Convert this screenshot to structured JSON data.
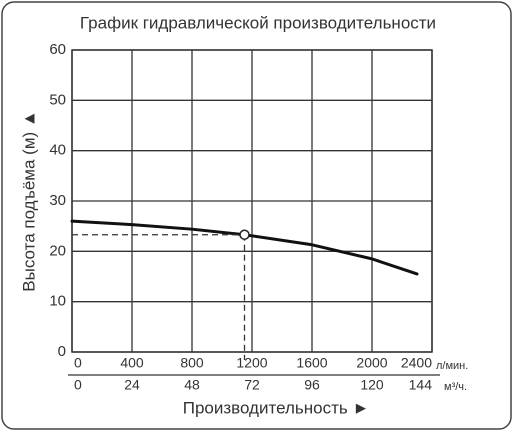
{
  "chart_data": {
    "type": "line",
    "title": "График гидравлической производительности",
    "ylabel": "Высота подъёма (м) ▲",
    "xlabel": "Производительность ►",
    "x_unit": "л/мин.",
    "x2_unit": "м³/ч.",
    "xlim": [
      0,
      2400
    ],
    "xticks": [
      0,
      400,
      800,
      1200,
      1600,
      2000,
      2400
    ],
    "x2lim": [
      0,
      144
    ],
    "x2ticks": [
      0,
      24,
      48,
      72,
      96,
      120,
      144
    ],
    "ylim": [
      0,
      60
    ],
    "yticks": [
      0,
      10,
      20,
      30,
      40,
      50,
      60
    ],
    "grid": true,
    "series": [
      {
        "color": "#111111",
        "x": [
          0,
          400,
          800,
          1150,
          1600,
          2000,
          2300
        ],
        "values": [
          26,
          25.3,
          24.4,
          23.3,
          21.3,
          18.5,
          15.5
        ]
      }
    ],
    "operating_point": {
      "x": 1150,
      "y": 23.3
    }
  }
}
